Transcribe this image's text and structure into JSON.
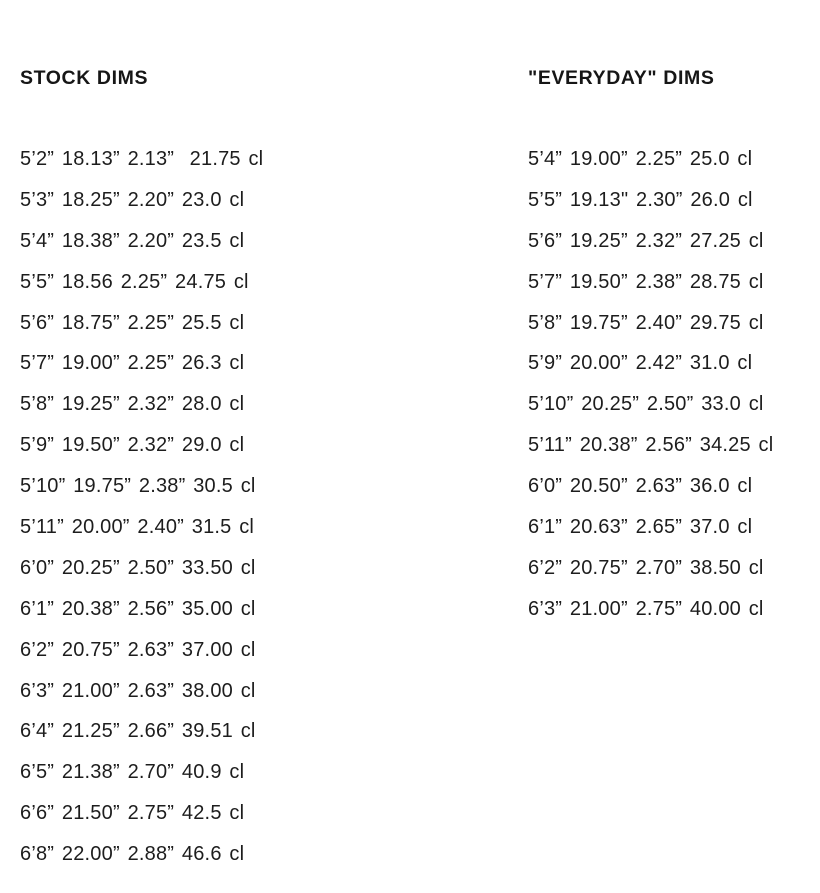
{
  "stock": {
    "header": "STOCK DIMS",
    "rows": [
      "5’2” 18.13” 2.13”  21.75 cl",
      "5’3” 18.25” 2.20” 23.0 cl",
      "5’4” 18.38” 2.20” 23.5 cl",
      "5’5” 18.56 2.25” 24.75 cl",
      "5’6” 18.75” 2.25” 25.5 cl",
      "5’7” 19.00” 2.25” 26.3 cl",
      "5’8” 19.25” 2.32” 28.0 cl",
      "5’9” 19.50” 2.32” 29.0 cl",
      "5’10” 19.75” 2.38” 30.5 cl",
      "5’11” 20.00” 2.40” 31.5 cl",
      "6’0” 20.25” 2.50” 33.50 cl",
      "6’1” 20.38” 2.56” 35.00 cl",
      "6’2” 20.75” 2.63” 37.00 cl",
      "6’3” 21.00” 2.63” 38.00 cl",
      "6’4” 21.25” 2.66” 39.51 cl",
      "6’5” 21.38” 2.70” 40.9 cl",
      "6’6” 21.50” 2.75” 42.5 cl",
      "6’8” 22.00” 2.88” 46.6 cl"
    ]
  },
  "everyday": {
    "header": "\"EVERYDAY\" DIMS",
    "rows": [
      "5’4” 19.00” 2.25” 25.0 cl",
      "5’5” 19.13\" 2.30” 26.0 cl",
      "5’6” 19.25” 2.32” 27.25 cl",
      "5’7” 19.50” 2.38” 28.75 cl",
      "5’8” 19.75” 2.40” 29.75 cl",
      "5’9” 20.00” 2.42” 31.0 cl",
      "5’10” 20.25” 2.50” 33.0 cl",
      "5’11” 20.38” 2.56” 34.25 cl",
      "6’0” 20.50” 2.63” 36.0 cl",
      "6’1” 20.63” 2.65” 37.0 cl",
      "6’2” 20.75” 2.70” 38.50 cl",
      "6’3” 21.00” 2.75” 40.00 cl"
    ]
  }
}
